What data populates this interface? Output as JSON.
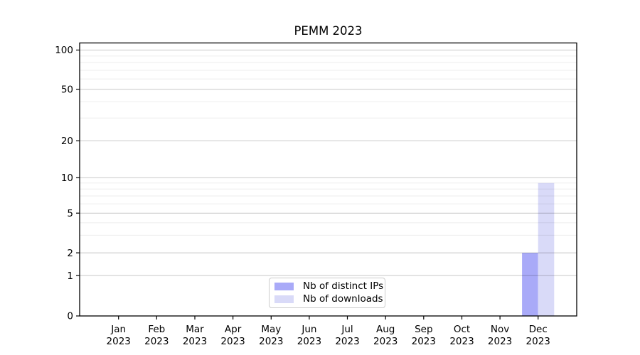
{
  "chart_data": {
    "type": "bar",
    "title": "PEMM 2023",
    "xlabel": "",
    "ylabel": "",
    "categories": [
      "Jan 2023",
      "Feb 2023",
      "Mar 2023",
      "Apr 2023",
      "May 2023",
      "Jun 2023",
      "Jul 2023",
      "Aug 2023",
      "Sep 2023",
      "Oct 2023",
      "Nov 2023",
      "Dec 2023"
    ],
    "series": [
      {
        "name": "Nb of distinct IPs",
        "color": "#a9aaf8",
        "values": [
          0,
          0,
          0,
          0,
          0,
          0,
          0,
          0,
          0,
          0,
          0,
          2
        ]
      },
      {
        "name": "Nb of downloads",
        "color": "#d9daf8",
        "values": [
          0,
          0,
          0,
          0,
          0,
          0,
          0,
          0,
          0,
          0,
          0,
          9
        ]
      }
    ],
    "yticks": [
      0,
      1,
      2,
      5,
      10,
      20,
      50,
      100
    ],
    "y_minor_ticks": [
      3,
      4,
      6,
      7,
      8,
      9,
      30,
      40,
      60,
      70,
      80,
      90
    ],
    "ylim": [
      0,
      100
    ],
    "yscale": "symlog-like",
    "grid": "horizontal-major-and-minor",
    "legend_position": "lower-center-inside"
  },
  "colors": {
    "background": "#ffffff",
    "spine": "#000000",
    "text": "#000000",
    "legend_border": "#cccccc"
  }
}
